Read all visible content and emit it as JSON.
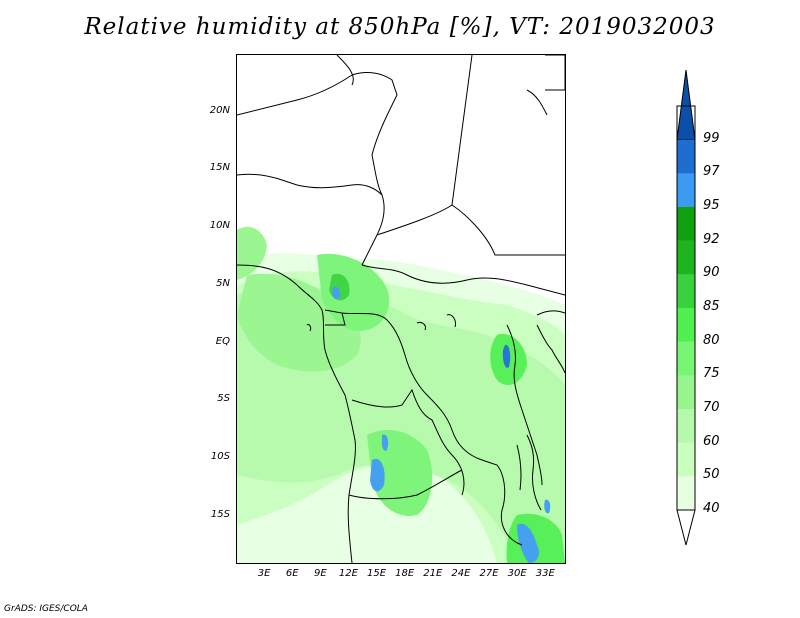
{
  "title": "Relative humidity at 850hPa [%], VT: 2019032003",
  "footer": "GrADS: IGES/COLA",
  "map": {
    "lat_labels": [
      {
        "lat": 20,
        "label": "20N"
      },
      {
        "lat": 15,
        "label": "15N"
      },
      {
        "lat": 10,
        "label": "10N"
      },
      {
        "lat": 5,
        "label": "5N"
      },
      {
        "lat": 0,
        "label": "EQ"
      },
      {
        "lat": -5,
        "label": "5S"
      },
      {
        "lat": -10,
        "label": "10S"
      },
      {
        "lat": -15,
        "label": "15S"
      }
    ],
    "lon_labels": [
      {
        "lon": 3,
        "label": "3E"
      },
      {
        "lon": 6,
        "label": "6E"
      },
      {
        "lon": 9,
        "label": "9E"
      },
      {
        "lon": 12,
        "label": "12E"
      },
      {
        "lon": 15,
        "label": "15E"
      },
      {
        "lon": 18,
        "label": "18E"
      },
      {
        "lon": 21,
        "label": "21E"
      },
      {
        "lon": 24,
        "label": "24E"
      },
      {
        "lon": 27,
        "label": "27E"
      },
      {
        "lon": 30,
        "label": "30E"
      },
      {
        "lon": 33,
        "label": "33E"
      }
    ]
  },
  "colorbar": {
    "levels": [
      {
        "value": "40",
        "color": "#e6ffe1"
      },
      {
        "value": "50",
        "color": "#c8ffbe"
      },
      {
        "value": "60",
        "color": "#b4faaa"
      },
      {
        "value": "70",
        "color": "#96f58c"
      },
      {
        "value": "75",
        "color": "#78f573"
      },
      {
        "value": "80",
        "color": "#50f050"
      },
      {
        "value": "85",
        "color": "#37d23c"
      },
      {
        "value": "90",
        "color": "#1eb41e"
      },
      {
        "value": "92",
        "color": "#0fa00f"
      },
      {
        "value": "95",
        "color": "#3c9bf0"
      },
      {
        "value": "97",
        "color": "#1e6ed2"
      },
      {
        "value": "99",
        "color": "#0a50aa"
      }
    ]
  }
}
